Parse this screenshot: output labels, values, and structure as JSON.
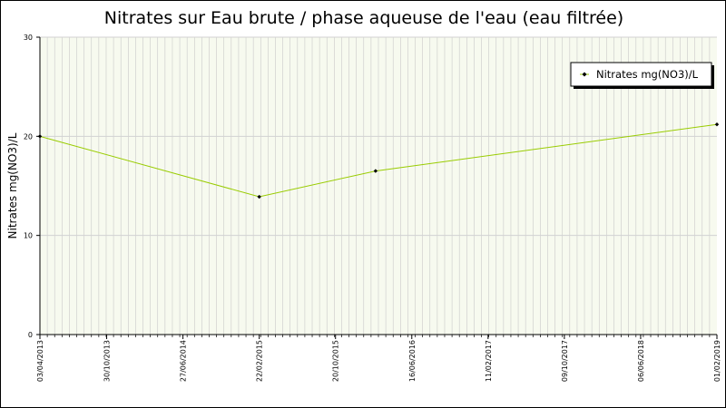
{
  "chart_data": {
    "type": "line",
    "title": "Nitrates sur Eau brute / phase aqueuse de l'eau (eau filtrée)",
    "ylabel": "Nitrates mg(NO3)/L",
    "xlabel": "",
    "ylim": [
      0,
      30
    ],
    "y_ticks": [
      0,
      10,
      20,
      30
    ],
    "y_tick_labels": [
      "0",
      "10",
      "20",
      "30"
    ],
    "x_range": [
      "2013-04-03",
      "2019-02-01"
    ],
    "x_ticks": [
      "2013-04-03",
      "2013-10-30",
      "2014-06-27",
      "2015-02-22",
      "2015-10-20",
      "2016-06-16",
      "2017-02-11",
      "2017-10-09",
      "2018-06-06",
      "2019-02-01"
    ],
    "x_tick_labels": [
      "03/04/2013",
      "30/10/2013",
      "27/06/2014",
      "22/02/2015",
      "20/10/2015",
      "16/06/2016",
      "11/02/2017",
      "09/10/2017",
      "06/06/2018",
      "01/02/2019"
    ],
    "grid": true,
    "legend_position": "top-right",
    "series": [
      {
        "name": "Nitrates mg(NO3)/L",
        "color": "#99cc00",
        "marker_color": "#000000",
        "points": [
          {
            "x": "2013-04-03",
            "y": 20
          },
          {
            "x": "2015-02-22",
            "y": 13.9
          },
          {
            "x": "2016-02-23",
            "y": 16.5
          },
          {
            "x": "2019-02-01",
            "y": 21.2
          }
        ]
      }
    ],
    "colors": {
      "plot_background": "#f7faef",
      "vertical_grid": "#c9c9c9",
      "horizontal_grid": "#d2d2d2"
    }
  }
}
